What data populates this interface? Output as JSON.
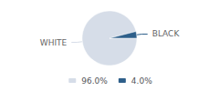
{
  "chart_data": {
    "type": "pie",
    "categories": [
      "WHITE",
      "BLACK"
    ],
    "values": [
      96.0,
      4.0
    ],
    "value_labels": [
      "96.0%",
      "4.0%"
    ],
    "colors": [
      "#d6dde8",
      "#2e5f8a"
    ],
    "legend": "bottom"
  }
}
